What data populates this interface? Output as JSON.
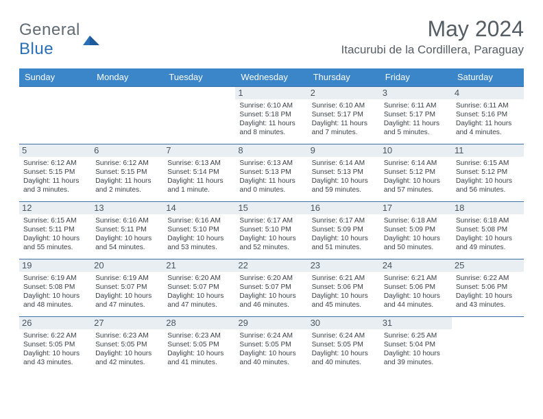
{
  "brand": {
    "part1": "General",
    "part2": "Blue"
  },
  "title": "May 2024",
  "location": "Itacurubi de la Cordillera, Paraguay",
  "colors": {
    "header_bg": "#3a86c8",
    "header_text": "#ffffff",
    "daynum_bg": "#e9eef2",
    "border": "#3a6fa5",
    "text": "#3a4148",
    "title_text": "#555d64",
    "logo_gray": "#5f6a72",
    "logo_blue": "#2a6fb5"
  },
  "weekdays": [
    "Sunday",
    "Monday",
    "Tuesday",
    "Wednesday",
    "Thursday",
    "Friday",
    "Saturday"
  ],
  "weeks": [
    [
      {
        "empty": true
      },
      {
        "empty": true
      },
      {
        "empty": true
      },
      {
        "day": "1",
        "sunrise": "6:10 AM",
        "sunset": "5:18 PM",
        "daylight": "11 hours and 8 minutes."
      },
      {
        "day": "2",
        "sunrise": "6:10 AM",
        "sunset": "5:17 PM",
        "daylight": "11 hours and 7 minutes."
      },
      {
        "day": "3",
        "sunrise": "6:11 AM",
        "sunset": "5:17 PM",
        "daylight": "11 hours and 5 minutes."
      },
      {
        "day": "4",
        "sunrise": "6:11 AM",
        "sunset": "5:16 PM",
        "daylight": "11 hours and 4 minutes."
      }
    ],
    [
      {
        "day": "5",
        "sunrise": "6:12 AM",
        "sunset": "5:15 PM",
        "daylight": "11 hours and 3 minutes."
      },
      {
        "day": "6",
        "sunrise": "6:12 AM",
        "sunset": "5:15 PM",
        "daylight": "11 hours and 2 minutes."
      },
      {
        "day": "7",
        "sunrise": "6:13 AM",
        "sunset": "5:14 PM",
        "daylight": "11 hours and 1 minute."
      },
      {
        "day": "8",
        "sunrise": "6:13 AM",
        "sunset": "5:13 PM",
        "daylight": "11 hours and 0 minutes."
      },
      {
        "day": "9",
        "sunrise": "6:14 AM",
        "sunset": "5:13 PM",
        "daylight": "10 hours and 59 minutes."
      },
      {
        "day": "10",
        "sunrise": "6:14 AM",
        "sunset": "5:12 PM",
        "daylight": "10 hours and 57 minutes."
      },
      {
        "day": "11",
        "sunrise": "6:15 AM",
        "sunset": "5:12 PM",
        "daylight": "10 hours and 56 minutes."
      }
    ],
    [
      {
        "day": "12",
        "sunrise": "6:15 AM",
        "sunset": "5:11 PM",
        "daylight": "10 hours and 55 minutes."
      },
      {
        "day": "13",
        "sunrise": "6:16 AM",
        "sunset": "5:11 PM",
        "daylight": "10 hours and 54 minutes."
      },
      {
        "day": "14",
        "sunrise": "6:16 AM",
        "sunset": "5:10 PM",
        "daylight": "10 hours and 53 minutes."
      },
      {
        "day": "15",
        "sunrise": "6:17 AM",
        "sunset": "5:10 PM",
        "daylight": "10 hours and 52 minutes."
      },
      {
        "day": "16",
        "sunrise": "6:17 AM",
        "sunset": "5:09 PM",
        "daylight": "10 hours and 51 minutes."
      },
      {
        "day": "17",
        "sunrise": "6:18 AM",
        "sunset": "5:09 PM",
        "daylight": "10 hours and 50 minutes."
      },
      {
        "day": "18",
        "sunrise": "6:18 AM",
        "sunset": "5:08 PM",
        "daylight": "10 hours and 49 minutes."
      }
    ],
    [
      {
        "day": "19",
        "sunrise": "6:19 AM",
        "sunset": "5:08 PM",
        "daylight": "10 hours and 48 minutes."
      },
      {
        "day": "20",
        "sunrise": "6:19 AM",
        "sunset": "5:07 PM",
        "daylight": "10 hours and 47 minutes."
      },
      {
        "day": "21",
        "sunrise": "6:20 AM",
        "sunset": "5:07 PM",
        "daylight": "10 hours and 47 minutes."
      },
      {
        "day": "22",
        "sunrise": "6:20 AM",
        "sunset": "5:07 PM",
        "daylight": "10 hours and 46 minutes."
      },
      {
        "day": "23",
        "sunrise": "6:21 AM",
        "sunset": "5:06 PM",
        "daylight": "10 hours and 45 minutes."
      },
      {
        "day": "24",
        "sunrise": "6:21 AM",
        "sunset": "5:06 PM",
        "daylight": "10 hours and 44 minutes."
      },
      {
        "day": "25",
        "sunrise": "6:22 AM",
        "sunset": "5:06 PM",
        "daylight": "10 hours and 43 minutes."
      }
    ],
    [
      {
        "day": "26",
        "sunrise": "6:22 AM",
        "sunset": "5:05 PM",
        "daylight": "10 hours and 43 minutes."
      },
      {
        "day": "27",
        "sunrise": "6:23 AM",
        "sunset": "5:05 PM",
        "daylight": "10 hours and 42 minutes."
      },
      {
        "day": "28",
        "sunrise": "6:23 AM",
        "sunset": "5:05 PM",
        "daylight": "10 hours and 41 minutes."
      },
      {
        "day": "29",
        "sunrise": "6:24 AM",
        "sunset": "5:05 PM",
        "daylight": "10 hours and 40 minutes."
      },
      {
        "day": "30",
        "sunrise": "6:24 AM",
        "sunset": "5:05 PM",
        "daylight": "10 hours and 40 minutes."
      },
      {
        "day": "31",
        "sunrise": "6:25 AM",
        "sunset": "5:04 PM",
        "daylight": "10 hours and 39 minutes."
      },
      {
        "empty": true
      }
    ]
  ],
  "labels": {
    "sunrise": "Sunrise:",
    "sunset": "Sunset:",
    "daylight": "Daylight:"
  }
}
